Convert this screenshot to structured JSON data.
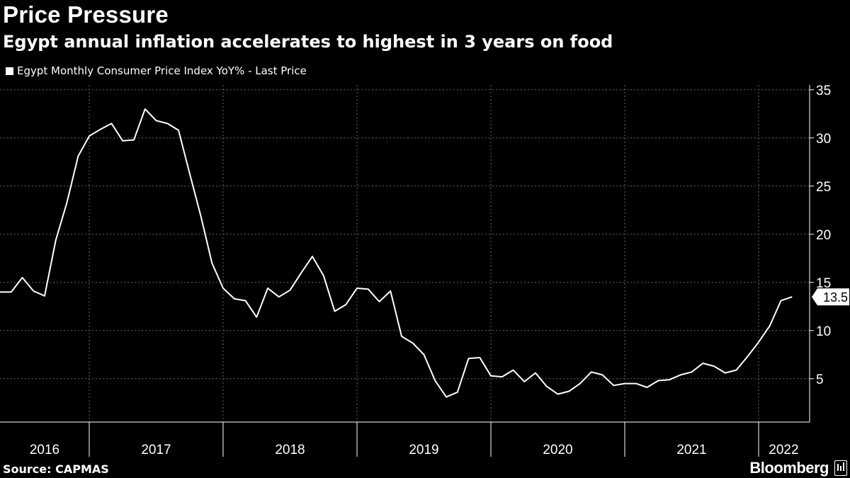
{
  "title": "Price Pressure",
  "subtitle": "Egypt annual inflation accelerates to highest in 3 years on food",
  "legend": "Egypt Monthly Consumer Price Index YoY% - Last Price",
  "source": "Source: CAPMAS",
  "brand": "Bloomberg",
  "colors": {
    "background": "#000000",
    "line": "#ffffff",
    "grid": "#666666"
  },
  "chart_data": {
    "type": "line",
    "title": "Price Pressure",
    "subtitle": "Egypt annual inflation accelerates to highest in 3 years on food",
    "series": [
      {
        "name": "Egypt Monthly Consumer Price Index YoY% - Last Price",
        "start": "2016-05",
        "values": [
          14.0,
          14.0,
          15.5,
          14.1,
          13.6,
          19.4,
          23.3,
          28.1,
          30.2,
          30.9,
          31.5,
          29.7,
          29.8,
          33.0,
          31.8,
          31.5,
          30.8,
          26.3,
          21.9,
          17.0,
          14.4,
          13.3,
          13.1,
          11.4,
          14.4,
          13.5,
          14.2,
          16.0,
          17.7,
          15.7,
          12.0,
          12.7,
          14.4,
          14.3,
          13.0,
          14.1,
          9.4,
          8.7,
          7.5,
          4.8,
          3.1,
          3.6,
          7.1,
          7.2,
          5.3,
          5.2,
          5.9,
          4.7,
          5.6,
          4.2,
          3.4,
          3.7,
          4.5,
          5.7,
          5.4,
          4.3,
          4.5,
          4.5,
          4.1,
          4.8,
          4.9,
          5.4,
          5.7,
          6.6,
          6.3,
          5.6,
          5.9,
          7.3,
          8.8,
          10.5,
          13.1,
          13.5
        ]
      }
    ],
    "x_labels": [
      "2016",
      "2017",
      "2018",
      "2019",
      "2020",
      "2021",
      "2022"
    ],
    "y_ticks": [
      5,
      10,
      15,
      20,
      25,
      30,
      35
    ],
    "ylim": [
      0.5,
      35.5
    ],
    "last_value_label": "13.5",
    "grid": true,
    "y_axis_position": "right",
    "legend_position": "top-left"
  }
}
